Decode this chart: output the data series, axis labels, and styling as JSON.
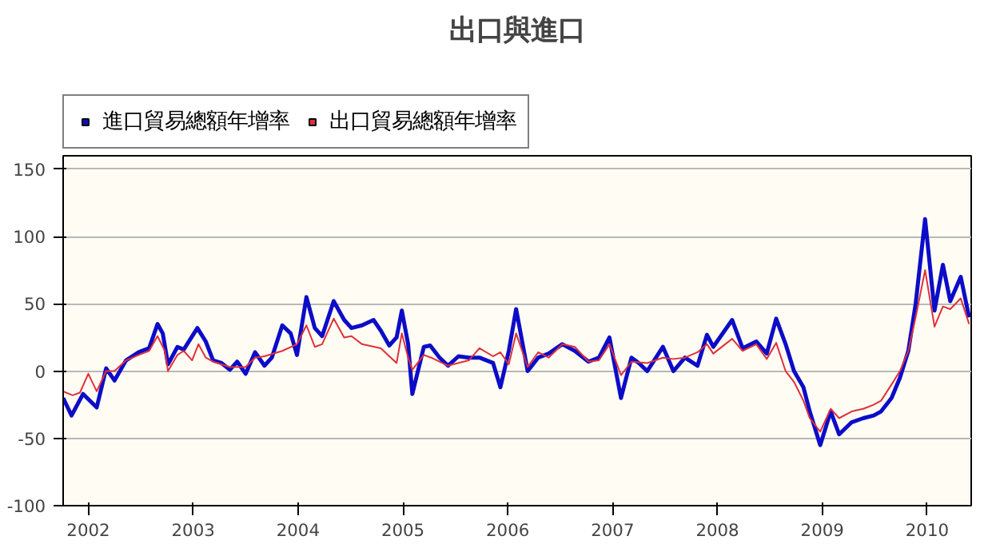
{
  "chart_data": {
    "type": "line",
    "title": "出口與進口",
    "legend": "top left",
    "grid": "y",
    "line_style": "solid",
    "marker": "none",
    "xlim": [
      2001.76,
      2010.42
    ],
    "ylim": [
      -100,
      160
    ],
    "xticks": [
      {
        "value": 2002,
        "label": "2002"
      },
      {
        "value": 2003,
        "label": "2003"
      },
      {
        "value": 2004,
        "label": "2004"
      },
      {
        "value": 2005,
        "label": "2005"
      },
      {
        "value": 2006,
        "label": "2006"
      },
      {
        "value": 2007,
        "label": "2007"
      },
      {
        "value": 2008,
        "label": "2008"
      },
      {
        "value": 2009,
        "label": "2009"
      },
      {
        "value": 2010,
        "label": "2010"
      }
    ],
    "yticks": [
      -100,
      -50,
      0,
      50,
      100,
      150
    ],
    "series": [
      {
        "name": "進口貿易總額年增率",
        "color": "#0c0cc8",
        "x": [
          2001.76,
          2001.84,
          2001.95,
          2002.08,
          2002.17,
          2002.25,
          2002.36,
          2002.48,
          2002.58,
          2002.66,
          2002.71,
          2002.76,
          2002.85,
          2002.91,
          2003.04,
          2003.12,
          2003.19,
          2003.27,
          2003.35,
          2003.42,
          2003.5,
          2003.59,
          2003.68,
          2003.75,
          2003.85,
          2003.93,
          2003.99,
          2004.08,
          2004.16,
          2004.23,
          2004.34,
          2004.44,
          2004.51,
          2004.61,
          2004.72,
          2004.79,
          2004.87,
          2004.94,
          2004.99,
          2005.05,
          2005.09,
          2005.2,
          2005.26,
          2005.35,
          2005.43,
          2005.53,
          2005.63,
          2005.73,
          2005.86,
          2005.93,
          2006.01,
          2006.08,
          2006.19,
          2006.29,
          2006.39,
          2006.52,
          2006.64,
          2006.77,
          2006.87,
          2006.97,
          2007.08,
          2007.18,
          2007.25,
          2007.33,
          2007.48,
          2007.58,
          2007.69,
          2007.81,
          2007.9,
          2007.96,
          2008.14,
          2008.24,
          2008.37,
          2008.47,
          2008.56,
          2008.65,
          2008.73,
          2008.82,
          2008.88,
          2008.98,
          2009.08,
          2009.16,
          2009.28,
          2009.39,
          2009.49,
          2009.56,
          2009.66,
          2009.74,
          2009.82,
          2009.89,
          2009.98,
          2010.07,
          2010.15,
          2010.22,
          2010.32,
          2010.4
        ],
        "values": [
          -20,
          -33,
          -17,
          -27,
          2,
          -7,
          8,
          14,
          17,
          35,
          28,
          5,
          18,
          16,
          32,
          22,
          8,
          6,
          1,
          7,
          -2,
          14,
          4,
          10,
          34,
          28,
          12,
          55,
          32,
          26,
          52,
          38,
          32,
          34,
          38,
          30,
          19,
          25,
          45,
          20,
          -17,
          18,
          19,
          10,
          4,
          11,
          10,
          10,
          6,
          -12,
          15,
          46,
          0,
          10,
          13,
          20,
          15,
          7,
          10,
          25,
          -20,
          10,
          6,
          0,
          18,
          0,
          10,
          4,
          27,
          18,
          38,
          17,
          22,
          13,
          39,
          20,
          0,
          -12,
          -30,
          -55,
          -30,
          -47,
          -38,
          -35,
          -33,
          -30,
          -20,
          -5,
          15,
          50,
          113,
          45,
          79,
          52,
          70,
          40
        ]
      },
      {
        "name": "出口貿易總額年增率",
        "color": "#e0303a",
        "x": [
          2001.76,
          2001.85,
          2001.92,
          2002.0,
          2002.08,
          2002.17,
          2002.25,
          2002.36,
          2002.48,
          2002.58,
          2002.66,
          2002.73,
          2002.76,
          2002.85,
          2002.91,
          2002.99,
          2003.05,
          2003.12,
          2003.19,
          2003.35,
          2003.5,
          2003.59,
          2003.68,
          2003.85,
          2003.99,
          2004.08,
          2004.16,
          2004.23,
          2004.34,
          2004.44,
          2004.51,
          2004.61,
          2004.79,
          2004.94,
          2004.99,
          2005.05,
          2005.09,
          2005.2,
          2005.27,
          2005.43,
          2005.63,
          2005.73,
          2005.86,
          2005.93,
          2006.01,
          2006.08,
          2006.19,
          2006.29,
          2006.39,
          2006.52,
          2006.64,
          2006.77,
          2006.87,
          2006.97,
          2007.08,
          2007.18,
          2007.33,
          2007.48,
          2007.58,
          2007.69,
          2007.81,
          2007.9,
          2007.96,
          2008.14,
          2008.24,
          2008.37,
          2008.47,
          2008.56,
          2008.65,
          2008.73,
          2008.82,
          2008.88,
          2008.98,
          2009.08,
          2009.16,
          2009.28,
          2009.39,
          2009.49,
          2009.56,
          2009.66,
          2009.74,
          2009.82,
          2009.89,
          2009.98,
          2010.07,
          2010.15,
          2010.22,
          2010.32,
          2010.4
        ],
        "values": [
          -15,
          -18,
          -16,
          -2,
          -15,
          0,
          0,
          8,
          12,
          15,
          26,
          15,
          0,
          12,
          15,
          8,
          20,
          10,
          7,
          3,
          3,
          10,
          11,
          15,
          20,
          34,
          18,
          20,
          39,
          25,
          26,
          20,
          17,
          6,
          28,
          10,
          1,
          12,
          10,
          4,
          8,
          17,
          11,
          14,
          5,
          28,
          3,
          14,
          10,
          20,
          18,
          7,
          8,
          20,
          -3,
          7,
          6,
          10,
          9,
          10,
          14,
          20,
          13,
          24,
          15,
          20,
          9,
          21,
          0,
          -8,
          -22,
          -35,
          -45,
          -28,
          -35,
          -30,
          -28,
          -25,
          -22,
          -10,
          0,
          15,
          40,
          75,
          33,
          48,
          46,
          54,
          35
        ]
      }
    ]
  }
}
